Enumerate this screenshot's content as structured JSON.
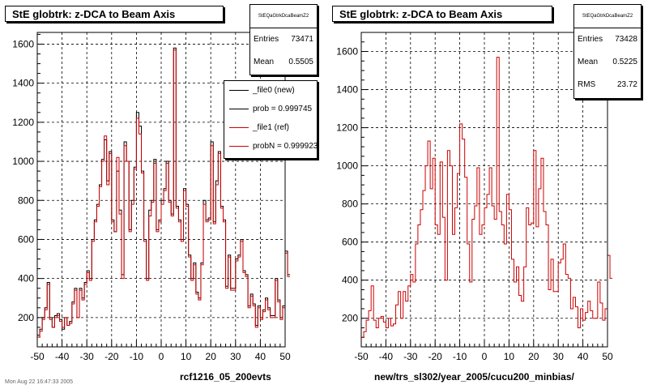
{
  "left_panel": {
    "title": "StE globtrk: z-DCA to Beam Axis",
    "stats": {
      "name": "StEQaGtrkDcaBeamZ2",
      "rows": [
        {
          "label": "Entries",
          "value": "73471"
        },
        {
          "label": "Mean",
          "value": "0.5505"
        }
      ]
    },
    "legend": [
      {
        "label": "_file0 (new)",
        "color": "#000000"
      },
      {
        "label": "prob = 0.999745",
        "color": "#000000"
      },
      {
        "label": "_file1 (ref)",
        "color": "#cc0000"
      },
      {
        "label": "probN = 0.999923",
        "color": "#cc0000"
      }
    ],
    "xlabel": "rcf1216_05_200evts"
  },
  "right_panel": {
    "title": "StE globtrk: z-DCA to Beam Axis",
    "stats": {
      "name": "StEQaGtrkDcaBeamZ2",
      "rows": [
        {
          "label": "Entries",
          "value": "73428"
        },
        {
          "label": "Mean",
          "value": "0.5225"
        },
        {
          "label": "RMS",
          "value": "23.72"
        }
      ]
    },
    "xlabel": "new/trs_sl302/year_2005/cucu200_minbias/"
  },
  "footer": "Mon Aug 22 16:47:33 2005",
  "chart_data": [
    {
      "type": "line",
      "title": "StE globtrk: z-DCA to Beam Axis",
      "xlabel": "rcf1216_05_200evts",
      "ylabel": "",
      "xlim": [
        -50,
        50
      ],
      "ylim": [
        50,
        1660
      ],
      "xticks": [
        -50,
        -40,
        -30,
        -20,
        -10,
        0,
        10,
        20,
        30,
        40,
        50
      ],
      "yticks": [
        200,
        400,
        600,
        800,
        1000,
        1200,
        1400,
        1600
      ],
      "grid": true,
      "legend_position": "top-right",
      "bin_width": 1,
      "x_start": -50,
      "series": [
        {
          "name": "_file0 (new)",
          "color": "#000000",
          "values": [
            110,
            140,
            200,
            250,
            380,
            200,
            150,
            210,
            220,
            190,
            140,
            200,
            160,
            180,
            280,
            350,
            200,
            350,
            300,
            380,
            440,
            400,
            600,
            700,
            780,
            880,
            1010,
            1110,
            900,
            1050,
            700,
            640,
            950,
            750,
            420,
            1100,
            1000,
            650,
            800,
            970,
            1250,
            1180,
            950,
            600,
            400,
            750,
            800,
            1010,
            650,
            700,
            800,
            860,
            1000,
            800,
            730,
            1580,
            770,
            700,
            600,
            860,
            780,
            520,
            400,
            480,
            330,
            300,
            480,
            800,
            700,
            710,
            1100,
            690,
            900,
            1050,
            770,
            700,
            360,
            520,
            350,
            350,
            500,
            520,
            600,
            440,
            420,
            260,
            320,
            270,
            160,
            260,
            200,
            240,
            300,
            250,
            210,
            210,
            400,
            290,
            200,
            260,
            540,
            420
          ]
        },
        {
          "name": "_file1 (ref)",
          "color": "#cc0000",
          "values": [
            100,
            130,
            190,
            240,
            370,
            190,
            150,
            200,
            210,
            180,
            150,
            200,
            160,
            170,
            270,
            340,
            200,
            340,
            290,
            370,
            430,
            390,
            590,
            690,
            770,
            870,
            1000,
            1130,
            880,
            1040,
            690,
            640,
            1020,
            730,
            400,
            1080,
            1000,
            640,
            780,
            960,
            1220,
            1140,
            940,
            590,
            390,
            720,
            790,
            990,
            640,
            690,
            780,
            850,
            990,
            790,
            720,
            1570,
            760,
            690,
            590,
            850,
            770,
            510,
            390,
            470,
            320,
            290,
            470,
            780,
            690,
            700,
            1080,
            680,
            880,
            1040,
            760,
            690,
            350,
            510,
            340,
            340,
            490,
            510,
            590,
            430,
            410,
            250,
            310,
            260,
            150,
            250,
            190,
            230,
            290,
            240,
            200,
            200,
            390,
            280,
            190,
            250,
            530,
            410
          ]
        }
      ]
    },
    {
      "type": "line",
      "title": "StE globtrk: z-DCA to Beam Axis",
      "xlabel": "new/trs_sl302/year_2005/cucu200_minbias/",
      "ylabel": "",
      "xlim": [
        -50,
        50
      ],
      "ylim": [
        50,
        1700
      ],
      "xticks": [
        -50,
        -40,
        -30,
        -20,
        -10,
        0,
        10,
        20,
        30,
        40,
        50
      ],
      "yticks": [
        200,
        400,
        600,
        800,
        1000,
        1200,
        1400,
        1600
      ],
      "grid": true,
      "bin_width": 1,
      "x_start": -50,
      "series": [
        {
          "name": "",
          "color": "#cc0000",
          "values": [
            100,
            130,
            190,
            240,
            370,
            190,
            150,
            200,
            210,
            180,
            150,
            200,
            160,
            170,
            270,
            340,
            200,
            340,
            290,
            370,
            430,
            390,
            590,
            690,
            770,
            870,
            1000,
            1130,
            880,
            1040,
            690,
            640,
            1020,
            730,
            400,
            1080,
            1000,
            640,
            780,
            960,
            1220,
            1140,
            940,
            590,
            390,
            720,
            790,
            990,
            640,
            690,
            780,
            850,
            990,
            790,
            720,
            1570,
            760,
            690,
            590,
            850,
            770,
            510,
            390,
            470,
            320,
            290,
            470,
            780,
            690,
            700,
            1080,
            680,
            880,
            1040,
            760,
            690,
            350,
            510,
            340,
            340,
            490,
            510,
            590,
            430,
            410,
            250,
            310,
            260,
            150,
            250,
            190,
            230,
            290,
            240,
            200,
            200,
            390,
            280,
            190,
            250,
            530,
            410
          ]
        }
      ]
    }
  ]
}
